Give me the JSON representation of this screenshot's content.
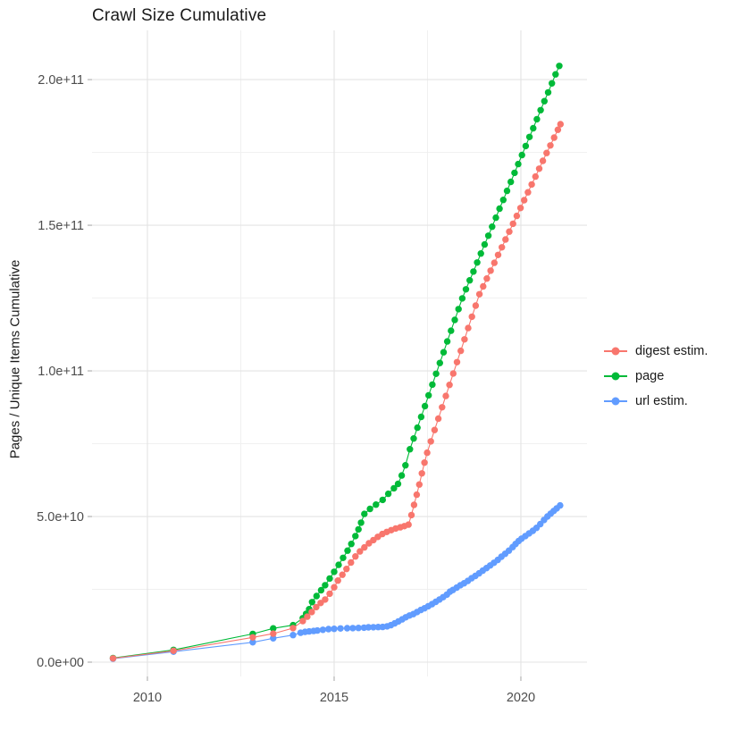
{
  "chart_data": {
    "type": "scatter",
    "title": "Crawl Size Cumulative",
    "xlabel": "",
    "ylabel": "Pages / Unique Items Cumulative",
    "grid": true,
    "legend_position": "right",
    "xlim": [
      2008.517,
      2021.771
    ],
    "ylim": [
      -4910000000.0,
      216900000000.0
    ],
    "x_ticks": [
      {
        "value": 2010,
        "label": "2010"
      },
      {
        "value": 2015,
        "label": "2015"
      },
      {
        "value": 2020,
        "label": "2020"
      }
    ],
    "x_minor": [
      2012.5,
      2017.5
    ],
    "y_ticks": [
      {
        "value": 0,
        "label": "0.0e+00"
      },
      {
        "value": 50000000000.0,
        "label": "5.0e+10"
      },
      {
        "value": 100000000000.0,
        "label": "1.0e+11"
      },
      {
        "value": 150000000000.0,
        "label": "1.5e+11"
      },
      {
        "value": 200000000000.0,
        "label": "2.0e+11"
      }
    ],
    "y_minor": [
      25000000000.0,
      75000000000.0,
      125000000000.0,
      175000000000.0
    ],
    "series": [
      {
        "name": "digest estim.",
        "color": "#F8766D",
        "points": [
          [
            2009.08,
            1300000000.0
          ],
          [
            2010.7,
            3900000000.0
          ],
          [
            2012.82,
            8500000000.0
          ],
          [
            2013.37,
            9800000000.0
          ],
          [
            2013.9,
            11700000000.0
          ],
          [
            2014.16,
            14100000000.0
          ],
          [
            2014.28,
            15600000000.0
          ],
          [
            2014.4,
            17200000000.0
          ],
          [
            2014.52,
            18900000000.0
          ],
          [
            2014.64,
            20300000000.0
          ],
          [
            2014.76,
            21500000000.0
          ],
          [
            2014.88,
            23500000000.0
          ],
          [
            2015.0,
            25700000000.0
          ],
          [
            2015.1,
            28000000000.0
          ],
          [
            2015.22,
            30000000000.0
          ],
          [
            2015.33,
            32000000000.0
          ],
          [
            2015.45,
            34200000000.0
          ],
          [
            2015.57,
            36300000000.0
          ],
          [
            2015.69,
            38000000000.0
          ],
          [
            2015.81,
            39400000000.0
          ],
          [
            2015.93,
            40800000000.0
          ],
          [
            2016.05,
            41900000000.0
          ],
          [
            2016.17,
            43000000000.0
          ],
          [
            2016.29,
            44000000000.0
          ],
          [
            2016.41,
            44700000000.0
          ],
          [
            2016.53,
            45300000000.0
          ],
          [
            2016.65,
            45900000000.0
          ],
          [
            2016.77,
            46300000000.0
          ],
          [
            2016.88,
            46700000000.0
          ],
          [
            2016.99,
            47200000000.0
          ],
          [
            2017.07,
            50500000000.0
          ],
          [
            2017.14,
            54000000000.0
          ],
          [
            2017.21,
            57500000000.0
          ],
          [
            2017.28,
            61000000000.0
          ],
          [
            2017.35,
            64800000000.0
          ],
          [
            2017.42,
            68500000000.0
          ],
          [
            2017.49,
            71900000000.0
          ],
          [
            2017.59,
            75800000000.0
          ],
          [
            2017.69,
            79700000000.0
          ],
          [
            2017.79,
            83600000000.0
          ],
          [
            2017.89,
            87500000000.0
          ],
          [
            2017.99,
            91400000000.0
          ],
          [
            2018.09,
            95200000000.0
          ],
          [
            2018.19,
            99100000000.0
          ],
          [
            2018.29,
            103000000000.0
          ],
          [
            2018.39,
            106900000000.0
          ],
          [
            2018.49,
            110800000000.0
          ],
          [
            2018.59,
            114700000000.0
          ],
          [
            2018.69,
            118600000000.0
          ],
          [
            2018.79,
            122400000000.0
          ],
          [
            2018.89,
            126300000000.0
          ],
          [
            2018.99,
            129000000000.0
          ],
          [
            2019.09,
            131700000000.0
          ],
          [
            2019.19,
            134400000000.0
          ],
          [
            2019.29,
            137100000000.0
          ],
          [
            2019.39,
            139800000000.0
          ],
          [
            2019.49,
            142400000000.0
          ],
          [
            2019.59,
            145100000000.0
          ],
          [
            2019.69,
            147800000000.0
          ],
          [
            2019.79,
            150500000000.0
          ],
          [
            2019.89,
            153200000000.0
          ],
          [
            2019.99,
            155900000000.0
          ],
          [
            2020.09,
            158600000000.0
          ],
          [
            2020.19,
            161300000000.0
          ],
          [
            2020.29,
            164000000000.0
          ],
          [
            2020.39,
            166700000000.0
          ],
          [
            2020.49,
            169400000000.0
          ],
          [
            2020.59,
            172100000000.0
          ],
          [
            2020.69,
            174800000000.0
          ],
          [
            2020.79,
            177400000000.0
          ],
          [
            2020.89,
            180100000000.0
          ],
          [
            2020.99,
            182800000000.0
          ],
          [
            2021.06,
            184700000000.0
          ]
        ]
      },
      {
        "name": "page",
        "color": "#00BA38",
        "points": [
          [
            2009.08,
            1400000000.0
          ],
          [
            2010.7,
            4200000000.0
          ],
          [
            2012.82,
            9700000000.0
          ],
          [
            2013.37,
            11600000000.0
          ],
          [
            2013.9,
            12700000000.0
          ],
          [
            2014.16,
            15100000000.0
          ],
          [
            2014.25,
            16600000000.0
          ],
          [
            2014.33,
            18200000000.0
          ],
          [
            2014.41,
            20600000000.0
          ],
          [
            2014.53,
            22700000000.0
          ],
          [
            2014.65,
            24700000000.0
          ],
          [
            2014.76,
            26400000000.0
          ],
          [
            2014.88,
            28700000000.0
          ],
          [
            2015.0,
            31000000000.0
          ],
          [
            2015.12,
            33400000000.0
          ],
          [
            2015.24,
            35800000000.0
          ],
          [
            2015.36,
            38300000000.0
          ],
          [
            2015.46,
            40600000000.0
          ],
          [
            2015.57,
            43300000000.0
          ],
          [
            2015.65,
            45600000000.0
          ],
          [
            2015.72,
            47900000000.0
          ],
          [
            2015.81,
            50900000000.0
          ],
          [
            2015.96,
            52600000000.0
          ],
          [
            2016.12,
            54100000000.0
          ],
          [
            2016.3,
            55700000000.0
          ],
          [
            2016.45,
            57800000000.0
          ],
          [
            2016.6,
            59700000000.0
          ],
          [
            2016.71,
            61200000000.0
          ],
          [
            2016.81,
            64100000000.0
          ],
          [
            2016.91,
            67600000000.0
          ],
          [
            2017.03,
            73100000000.0
          ],
          [
            2017.13,
            76800000000.0
          ],
          [
            2017.23,
            80500000000.0
          ],
          [
            2017.33,
            84200000000.0
          ],
          [
            2017.43,
            87900000000.0
          ],
          [
            2017.53,
            91600000000.0
          ],
          [
            2017.63,
            95300000000.0
          ],
          [
            2017.73,
            99000000000.0
          ],
          [
            2017.83,
            102700000000.0
          ],
          [
            2017.93,
            106400000000.0
          ],
          [
            2018.03,
            110100000000.0
          ],
          [
            2018.13,
            113800000000.0
          ],
          [
            2018.23,
            117500000000.0
          ],
          [
            2018.33,
            121200000000.0
          ],
          [
            2018.43,
            124900000000.0
          ],
          [
            2018.53,
            128000000000.0
          ],
          [
            2018.63,
            131100000000.0
          ],
          [
            2018.73,
            134100000000.0
          ],
          [
            2018.83,
            137200000000.0
          ],
          [
            2018.93,
            140300000000.0
          ],
          [
            2019.03,
            143400000000.0
          ],
          [
            2019.13,
            146400000000.0
          ],
          [
            2019.23,
            149500000000.0
          ],
          [
            2019.33,
            152600000000.0
          ],
          [
            2019.43,
            155700000000.0
          ],
          [
            2019.53,
            158700000000.0
          ],
          [
            2019.63,
            161800000000.0
          ],
          [
            2019.73,
            164900000000.0
          ],
          [
            2019.83,
            168000000000.0
          ],
          [
            2019.93,
            171000000000.0
          ],
          [
            2020.03,
            174100000000.0
          ],
          [
            2020.13,
            177200000000.0
          ],
          [
            2020.23,
            180300000000.0
          ],
          [
            2020.33,
            183300000000.0
          ],
          [
            2020.43,
            186400000000.0
          ],
          [
            2020.53,
            189500000000.0
          ],
          [
            2020.63,
            192600000000.0
          ],
          [
            2020.73,
            195600000000.0
          ],
          [
            2020.83,
            198700000000.0
          ],
          [
            2020.93,
            201800000000.0
          ],
          [
            2021.03,
            204700000000.0
          ]
        ]
      },
      {
        "name": "url estim.",
        "color": "#619CFF",
        "points": [
          [
            2009.08,
            1200000000.0
          ],
          [
            2010.7,
            3600000000.0
          ],
          [
            2012.82,
            6800000000.0
          ],
          [
            2013.37,
            8200000000.0
          ],
          [
            2013.9,
            9300000000.0
          ],
          [
            2014.1,
            10100000000.0
          ],
          [
            2014.22,
            10400000000.0
          ],
          [
            2014.33,
            10550000000.0
          ],
          [
            2014.45,
            10700000000.0
          ],
          [
            2014.55,
            10850000000.0
          ],
          [
            2014.7,
            11100000000.0
          ],
          [
            2014.85,
            11350000000.0
          ],
          [
            2015.0,
            11450000000.0
          ],
          [
            2015.17,
            11550000000.0
          ],
          [
            2015.35,
            11650000000.0
          ],
          [
            2015.5,
            11700000000.0
          ],
          [
            2015.65,
            11750000000.0
          ],
          [
            2015.8,
            11850000000.0
          ],
          [
            2015.92,
            11950000000.0
          ],
          [
            2016.05,
            12000000000.0
          ],
          [
            2016.18,
            12050000000.0
          ],
          [
            2016.3,
            12100000000.0
          ],
          [
            2016.42,
            12300000000.0
          ],
          [
            2016.52,
            12700000000.0
          ],
          [
            2016.62,
            13300000000.0
          ],
          [
            2016.72,
            14000000000.0
          ],
          [
            2016.82,
            14700000000.0
          ],
          [
            2016.92,
            15400000000.0
          ],
          [
            2017.02,
            16000000000.0
          ],
          [
            2017.12,
            16500000000.0
          ],
          [
            2017.22,
            17200000000.0
          ],
          [
            2017.32,
            17900000000.0
          ],
          [
            2017.42,
            18500000000.0
          ],
          [
            2017.52,
            19200000000.0
          ],
          [
            2017.62,
            19900000000.0
          ],
          [
            2017.72,
            20700000000.0
          ],
          [
            2017.82,
            21500000000.0
          ],
          [
            2017.92,
            22300000000.0
          ],
          [
            2018.02,
            23200000000.0
          ],
          [
            2018.1,
            24200000000.0
          ],
          [
            2018.18,
            24800000000.0
          ],
          [
            2018.28,
            25600000000.0
          ],
          [
            2018.38,
            26400000000.0
          ],
          [
            2018.48,
            27100000000.0
          ],
          [
            2018.58,
            27900000000.0
          ],
          [
            2018.68,
            28800000000.0
          ],
          [
            2018.78,
            29600000000.0
          ],
          [
            2018.88,
            30500000000.0
          ],
          [
            2018.98,
            31400000000.0
          ],
          [
            2019.08,
            32300000000.0
          ],
          [
            2019.18,
            33200000000.0
          ],
          [
            2019.28,
            34100000000.0
          ],
          [
            2019.38,
            35100000000.0
          ],
          [
            2019.48,
            36200000000.0
          ],
          [
            2019.58,
            37200000000.0
          ],
          [
            2019.68,
            38300000000.0
          ],
          [
            2019.78,
            39500000000.0
          ],
          [
            2019.86,
            40600000000.0
          ],
          [
            2019.94,
            41600000000.0
          ],
          [
            2020.02,
            42400000000.0
          ],
          [
            2020.12,
            43300000000.0
          ],
          [
            2020.22,
            44200000000.0
          ],
          [
            2020.32,
            45100000000.0
          ],
          [
            2020.42,
            46100000000.0
          ],
          [
            2020.52,
            47400000000.0
          ],
          [
            2020.62,
            48800000000.0
          ],
          [
            2020.71,
            50000000000.0
          ],
          [
            2020.8,
            51000000000.0
          ],
          [
            2020.88,
            51900000000.0
          ],
          [
            2020.96,
            52800000000.0
          ],
          [
            2021.05,
            53800000000.0
          ]
        ]
      }
    ],
    "style": {
      "grid_major_color": "#e3e3e3",
      "grid_minor_color": "#efefef",
      "tick_color": "#b3b3b3",
      "tick_label_color": "#4d4d4d",
      "point_radius": 3.7
    }
  }
}
